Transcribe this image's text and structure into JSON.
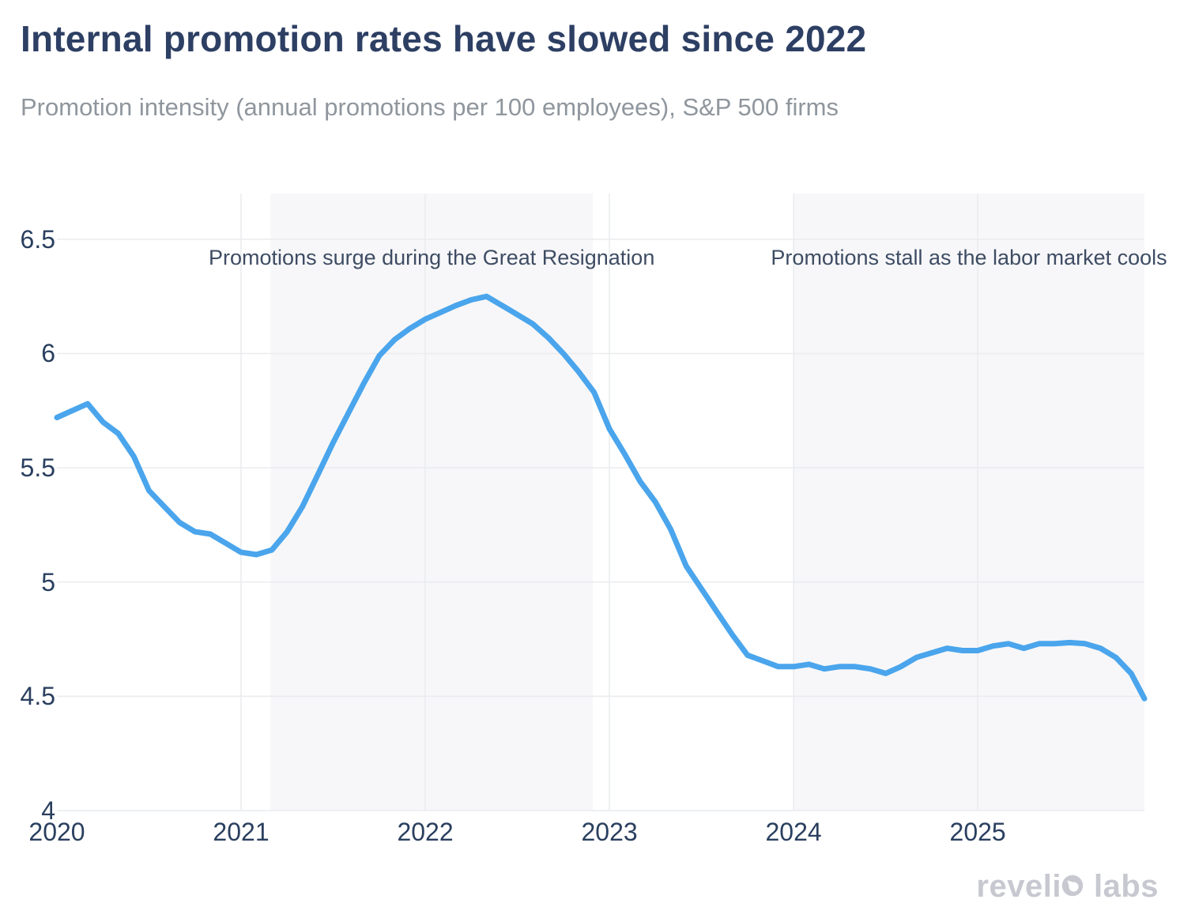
{
  "page": {
    "title": "Internal promotion rates have slowed since 2022",
    "subtitle": "Promotion intensity (annual promotions per 100 employees), S&P 500 firms"
  },
  "logo": {
    "full": "revelio labs",
    "part1": "reveli",
    "part2": "labs"
  },
  "chart_data": {
    "type": "line",
    "title": "Internal promotion rates have slowed since 2022",
    "subtitle": "Promotion intensity (annual promotions per 100 employees), S&P 500 firms",
    "xlabel": "",
    "ylabel": "",
    "x_range": [
      2020.0,
      2025.905
    ],
    "y_range": [
      4.0,
      6.7
    ],
    "grid": true,
    "legend": "none",
    "x_ticks": [
      {
        "value": 2020,
        "label": "2020"
      },
      {
        "value": 2021,
        "label": "2021"
      },
      {
        "value": 2022,
        "label": "2022"
      },
      {
        "value": 2023,
        "label": "2023"
      },
      {
        "value": 2024,
        "label": "2024"
      },
      {
        "value": 2025,
        "label": "2025"
      }
    ],
    "y_ticks": [
      {
        "value": 4.0,
        "label": "4"
      },
      {
        "value": 4.5,
        "label": "4.5"
      },
      {
        "value": 5.0,
        "label": "5"
      },
      {
        "value": 5.5,
        "label": "5.5"
      },
      {
        "value": 6.0,
        "label": "6"
      },
      {
        "value": 6.5,
        "label": "6.5"
      }
    ],
    "colors": {
      "line": "#4aa5ec",
      "grid": "#e9ebee",
      "tick_text": "#2a3f5f",
      "annotation_text": "#3e4c63",
      "band_fill": "#f7f7f9",
      "title_text": "#2d3f63",
      "subtitle_text": "#8f969d"
    },
    "shaded_bands": [
      {
        "x0": 2021.16,
        "x1": 2022.91,
        "label": "Promotions surge during the Great Resignation"
      },
      {
        "x0": 2024.0,
        "x1": 2025.905,
        "label": "Promotions stall as the labor market cools"
      }
    ],
    "annotation_y": 6.42,
    "series": [
      {
        "name": "Promotion intensity",
        "points": [
          [
            2020.0,
            5.72
          ],
          [
            2020.083,
            5.75
          ],
          [
            2020.167,
            5.78
          ],
          [
            2020.25,
            5.7
          ],
          [
            2020.333,
            5.65
          ],
          [
            2020.417,
            5.55
          ],
          [
            2020.5,
            5.4
          ],
          [
            2020.583,
            5.33
          ],
          [
            2020.667,
            5.26
          ],
          [
            2020.75,
            5.22
          ],
          [
            2020.833,
            5.21
          ],
          [
            2020.917,
            5.17
          ],
          [
            2021.0,
            5.13
          ],
          [
            2021.083,
            5.12
          ],
          [
            2021.167,
            5.14
          ],
          [
            2021.25,
            5.22
          ],
          [
            2021.333,
            5.33
          ],
          [
            2021.417,
            5.47
          ],
          [
            2021.5,
            5.61
          ],
          [
            2021.583,
            5.74
          ],
          [
            2021.667,
            5.87
          ],
          [
            2021.75,
            5.99
          ],
          [
            2021.833,
            6.06
          ],
          [
            2021.917,
            6.11
          ],
          [
            2022.0,
            6.15
          ],
          [
            2022.083,
            6.18
          ],
          [
            2022.167,
            6.21
          ],
          [
            2022.25,
            6.235
          ],
          [
            2022.333,
            6.25
          ],
          [
            2022.417,
            6.21
          ],
          [
            2022.5,
            6.17
          ],
          [
            2022.583,
            6.13
          ],
          [
            2022.667,
            6.07
          ],
          [
            2022.75,
            6.0
          ],
          [
            2022.833,
            5.92
          ],
          [
            2022.917,
            5.83
          ],
          [
            2023.0,
            5.67
          ],
          [
            2023.083,
            5.56
          ],
          [
            2023.167,
            5.44
          ],
          [
            2023.25,
            5.35
          ],
          [
            2023.333,
            5.23
          ],
          [
            2023.417,
            5.07
          ],
          [
            2023.5,
            4.97
          ],
          [
            2023.583,
            4.87
          ],
          [
            2023.667,
            4.77
          ],
          [
            2023.75,
            4.68
          ],
          [
            2023.833,
            4.655
          ],
          [
            2023.917,
            4.63
          ],
          [
            2024.0,
            4.63
          ],
          [
            2024.083,
            4.64
          ],
          [
            2024.167,
            4.62
          ],
          [
            2024.25,
            4.63
          ],
          [
            2024.333,
            4.63
          ],
          [
            2024.417,
            4.62
          ],
          [
            2024.5,
            4.6
          ],
          [
            2024.583,
            4.63
          ],
          [
            2024.667,
            4.67
          ],
          [
            2024.75,
            4.69
          ],
          [
            2024.833,
            4.71
          ],
          [
            2024.917,
            4.7
          ],
          [
            2025.0,
            4.7
          ],
          [
            2025.083,
            4.72
          ],
          [
            2025.167,
            4.73
          ],
          [
            2025.25,
            4.71
          ],
          [
            2025.333,
            4.73
          ],
          [
            2025.417,
            4.73
          ],
          [
            2025.5,
            4.735
          ],
          [
            2025.583,
            4.73
          ],
          [
            2025.667,
            4.71
          ],
          [
            2025.75,
            4.67
          ],
          [
            2025.833,
            4.6
          ],
          [
            2025.905,
            4.49
          ]
        ]
      }
    ]
  }
}
